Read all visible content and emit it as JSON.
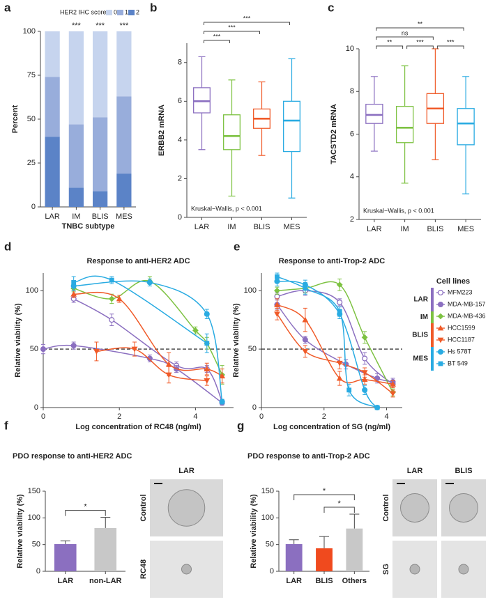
{
  "chart_data": [
    {
      "panel": "a",
      "type": "bar",
      "stacked": true,
      "legend_title": "HER2 IHC score",
      "categories": [
        "LAR",
        "IM",
        "BLIS",
        "MES"
      ],
      "series": [
        {
          "name": "0",
          "color": "#c6d4ee",
          "values": [
            26,
            53,
            49,
            37
          ]
        },
        {
          "name": "1",
          "color": "#98addb",
          "values": [
            34,
            36,
            42,
            44
          ]
        },
        {
          "name": "2",
          "color": "#5b83c7",
          "values": [
            40,
            11,
            9,
            19
          ]
        }
      ],
      "annotations": [
        null,
        "***",
        "***",
        "***"
      ],
      "xlabel": "TNBC subtype",
      "ylabel": "Percent",
      "ylim": [
        0,
        100
      ],
      "yticks": [
        0,
        25,
        50,
        75,
        100
      ]
    },
    {
      "panel": "b",
      "type": "box",
      "ylabel": "ERBB2 mRNA",
      "note": "Kruskal−Wallis, p < 0.001",
      "categories": [
        "LAR",
        "IM",
        "BLIS",
        "MES"
      ],
      "colors": [
        "#8b6fc0",
        "#7dc242",
        "#f05a28",
        "#29abe2"
      ],
      "boxes": [
        {
          "min": 3.5,
          "q1": 5.4,
          "median": 6.0,
          "q3": 6.7,
          "max": 8.3
        },
        {
          "min": 1.1,
          "q1": 3.5,
          "median": 4.2,
          "q3": 5.3,
          "max": 7.1
        },
        {
          "min": 3.2,
          "q1": 4.6,
          "median": 5.1,
          "q3": 5.6,
          "max": 7.0
        },
        {
          "min": 1.0,
          "q1": 3.4,
          "median": 5.0,
          "q3": 6.0,
          "max": 8.2
        }
      ],
      "comparisons": [
        {
          "from": "LAR",
          "to": "IM",
          "label": "***"
        },
        {
          "from": "LAR",
          "to": "BLIS",
          "label": "***"
        },
        {
          "from": "LAR",
          "to": "MES",
          "label": "***"
        }
      ],
      "ylim": [
        0,
        9
      ],
      "yticks": [
        0,
        2,
        4,
        6,
        8
      ]
    },
    {
      "panel": "c",
      "type": "box",
      "ylabel": "TACSTD2 mRNA",
      "note": "Kruskal−Wallis, p < 0.001",
      "categories": [
        "LAR",
        "IM",
        "BLIS",
        "MES"
      ],
      "colors": [
        "#8b6fc0",
        "#7dc242",
        "#f05a28",
        "#29abe2"
      ],
      "boxes": [
        {
          "min": 5.2,
          "q1": 6.5,
          "median": 6.9,
          "q3": 7.4,
          "max": 8.7
        },
        {
          "min": 3.7,
          "q1": 5.6,
          "median": 6.3,
          "q3": 7.3,
          "max": 9.2
        },
        {
          "min": 4.8,
          "q1": 6.5,
          "median": 7.2,
          "q3": 7.9,
          "max": 10.0
        },
        {
          "min": 3.2,
          "q1": 5.5,
          "median": 6.5,
          "q3": 7.2,
          "max": 8.7
        }
      ],
      "comparisons": [
        {
          "from": "LAR",
          "to": "IM",
          "label": "**"
        },
        {
          "from": "IM",
          "to": "BLIS",
          "label": "***"
        },
        {
          "from": "BLIS",
          "to": "MES",
          "label": "***"
        },
        {
          "from": "LAR",
          "to": "BLIS",
          "label": "ns"
        },
        {
          "from": "LAR",
          "to": "MES",
          "label": "**"
        }
      ],
      "ylim": [
        2,
        10
      ],
      "yticks": [
        2,
        4,
        6,
        8,
        10
      ]
    },
    {
      "panel": "d",
      "type": "line",
      "title": "Response to anti-HER2 ADC",
      "xlabel": "Log concentration of RC48 (ng/ml)",
      "ylabel": "Relative viability (%)",
      "xlim": [
        0,
        5
      ],
      "xticks": [
        0,
        2,
        4
      ],
      "ylim": [
        0,
        115
      ],
      "yticks": [
        0,
        50,
        100
      ],
      "hline": 50,
      "series": [
        {
          "name": "MFM223",
          "group": "LAR",
          "color": "#8b6fc0",
          "marker": "circle-open",
          "x": [
            0.8,
            1.8,
            3.5,
            4.3,
            4.7
          ],
          "values": [
            93,
            75,
            36,
            33,
            5
          ],
          "errors": [
            3,
            5,
            3,
            3,
            2
          ]
        },
        {
          "name": "MDA-MB-157",
          "group": "LAR",
          "color": "#8b6fc0",
          "marker": "circle",
          "x": [
            0,
            0.8,
            2.8,
            3.5,
            4.7
          ],
          "values": [
            50,
            53,
            42,
            33,
            4
          ],
          "errors": [
            4,
            3,
            3,
            3,
            2
          ]
        },
        {
          "name": "MDA-MB-436",
          "group": "IM",
          "color": "#7dc242",
          "marker": "diamond",
          "x": [
            0.8,
            1.8,
            2.8,
            4.0,
            4.3,
            4.7
          ],
          "values": [
            102,
            93,
            108,
            66,
            55,
            28
          ],
          "errors": [
            3,
            4,
            4,
            3,
            5,
            8
          ]
        },
        {
          "name": "HCC1599",
          "group": "BLIS",
          "color": "#f05a28",
          "marker": "triangle",
          "x": [
            0.8,
            2.0,
            3.3,
            4.3,
            4.7
          ],
          "values": [
            97,
            93,
            37,
            33,
            27
          ],
          "errors": [
            3,
            3,
            10,
            5,
            6
          ]
        },
        {
          "name": "HCC1187",
          "group": "BLIS",
          "color": "#f05a28",
          "marker": "triangle-down",
          "x": [
            1.4,
            2.4,
            3.3,
            4.3
          ],
          "values": [
            48,
            50,
            28,
            23
          ],
          "errors": [
            8,
            6,
            7,
            4
          ]
        },
        {
          "name": "Hs 578T",
          "group": "MES",
          "color": "#29abe2",
          "marker": "circle",
          "x": [
            0.8,
            2.8,
            4.3,
            4.7
          ],
          "values": [
            104,
            107,
            80,
            5
          ],
          "errors": [
            4,
            3,
            4,
            2
          ]
        },
        {
          "name": "BT 549",
          "group": "MES",
          "color": "#29abe2",
          "marker": "square",
          "x": [
            0.8,
            1.8,
            4.3
          ],
          "values": [
            107,
            109,
            55
          ],
          "errors": [
            5,
            3,
            8
          ]
        }
      ]
    },
    {
      "panel": "e",
      "type": "line",
      "title": "Response to anti-Trop-2 ADC",
      "xlabel": "Log concentration of SG (ng/ml)",
      "ylabel": "Relative viability (%)",
      "xlim": [
        0,
        4.5
      ],
      "xticks": [
        0,
        2,
        4
      ],
      "ylim": [
        0,
        115
      ],
      "yticks": [
        0,
        50,
        100
      ],
      "hline": 50,
      "legend_title": "Cell lines",
      "groups": [
        {
          "name": "LAR",
          "color": "#8b6fc0"
        },
        {
          "name": "IM",
          "color": "#7dc242"
        },
        {
          "name": "BLIS",
          "color": "#f05a28"
        },
        {
          "name": "MES",
          "color": "#29abe2"
        }
      ],
      "series": [
        {
          "name": "MFM223",
          "group": "LAR",
          "color": "#8b6fc0",
          "marker": "circle-open",
          "x": [
            0.5,
            1.4,
            2.5,
            3.3,
            4.2
          ],
          "values": [
            95,
            100,
            90,
            42,
            20
          ],
          "errors": [
            3,
            4,
            3,
            5,
            3
          ]
        },
        {
          "name": "MDA-MB-157",
          "group": "LAR",
          "color": "#8b6fc0",
          "marker": "circle",
          "x": [
            0.5,
            1.4,
            2.7,
            3.7,
            4.2
          ],
          "values": [
            88,
            58,
            37,
            25,
            22
          ],
          "errors": [
            4,
            3,
            4,
            4,
            3
          ]
        },
        {
          "name": "MDA-MB-436",
          "group": "IM",
          "color": "#7dc242",
          "marker": "diamond",
          "x": [
            0.5,
            1.4,
            2.5,
            3.3,
            4.2
          ],
          "values": [
            100,
            102,
            105,
            60,
            13
          ],
          "errors": [
            3,
            4,
            5,
            5,
            3
          ]
        },
        {
          "name": "HCC1599",
          "group": "BLIS",
          "color": "#f05a28",
          "marker": "triangle",
          "x": [
            0.5,
            1.4,
            2.5,
            3.3,
            4.2
          ],
          "values": [
            88,
            75,
            25,
            24,
            20
          ],
          "errors": [
            5,
            10,
            6,
            4,
            3
          ]
        },
        {
          "name": "HCC1187",
          "group": "BLIS",
          "color": "#f05a28",
          "marker": "triangle-down",
          "x": [
            0.5,
            1.4,
            2.5,
            3.3,
            4.2
          ],
          "values": [
            80,
            48,
            38,
            30,
            12
          ],
          "errors": [
            5,
            5,
            5,
            4,
            3
          ]
        },
        {
          "name": "Hs 578T",
          "group": "MES",
          "color": "#29abe2",
          "marker": "circle",
          "x": [
            0.5,
            1.4,
            2.5,
            3.3,
            3.7
          ],
          "values": [
            108,
            105,
            80,
            15,
            0
          ],
          "errors": [
            4,
            4,
            4,
            4,
            1
          ]
        },
        {
          "name": "BT 549",
          "group": "MES",
          "color": "#29abe2",
          "marker": "square",
          "x": [
            0.5,
            1.4,
            2.5,
            2.8,
            3.7
          ],
          "values": [
            112,
            102,
            82,
            15,
            0
          ],
          "errors": [
            3,
            5,
            4,
            5,
            1
          ]
        }
      ]
    },
    {
      "panel": "f",
      "type": "bar",
      "title": "PDO response to anti-HER2 ADC",
      "ylabel": "Relative viability (%)",
      "categories": [
        "LAR",
        "non-LAR"
      ],
      "colors": [
        "#8b6fc0",
        "#c8c8c8"
      ],
      "values": [
        51,
        81
      ],
      "errors": [
        6,
        20
      ],
      "comparisons": [
        {
          "from": "LAR",
          "to": "non-LAR",
          "label": "*"
        }
      ],
      "ylim": [
        0,
        150
      ],
      "yticks": [
        0,
        50,
        100,
        150
      ],
      "images": {
        "columns": [
          "LAR"
        ],
        "rows": [
          "Control",
          "RC48"
        ]
      }
    },
    {
      "panel": "g",
      "type": "bar",
      "title": "PDO response to anti-Trop-2 ADC",
      "ylabel": "Relative viability (%)",
      "categories": [
        "LAR",
        "BLIS",
        "Others"
      ],
      "colors": [
        "#8b6fc0",
        "#f04a1e",
        "#c8c8c8"
      ],
      "values": [
        51,
        43,
        80
      ],
      "errors": [
        8,
        22,
        27
      ],
      "comparisons": [
        {
          "from": "BLIS",
          "to": "Others",
          "label": "*"
        },
        {
          "from": "LAR",
          "to": "Others",
          "label": "*"
        }
      ],
      "ylim": [
        0,
        150
      ],
      "yticks": [
        0,
        50,
        100,
        150
      ],
      "images": {
        "columns": [
          "LAR",
          "BLIS"
        ],
        "rows": [
          "Control",
          "SG"
        ]
      }
    }
  ]
}
